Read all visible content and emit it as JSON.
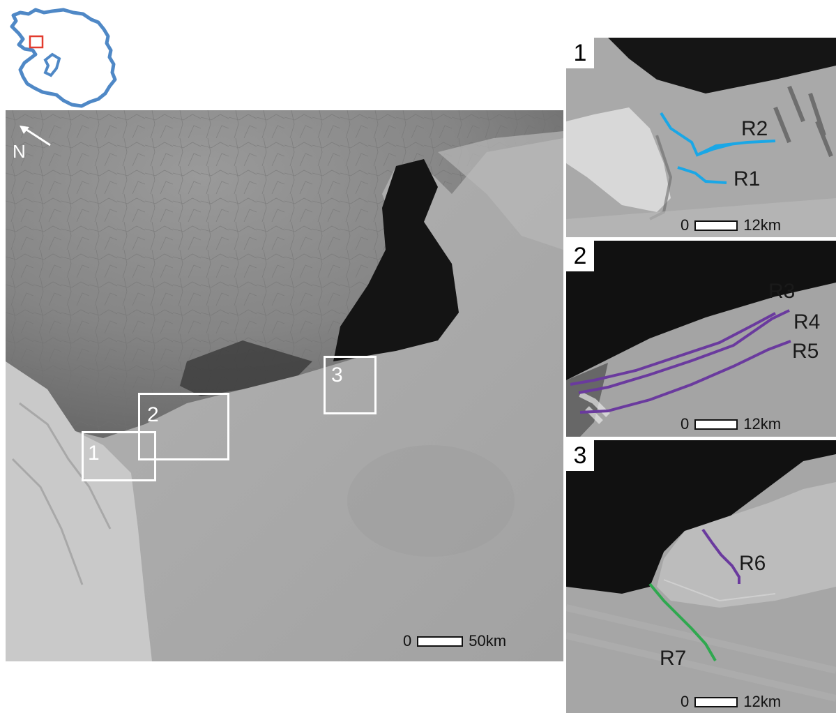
{
  "colors": {
    "continent_outline": "#4f88c6",
    "locator_box": "#e23b2e",
    "route_blue": "#1aa7e6",
    "route_purple": "#6a3a9e",
    "route_green": "#2fa84f",
    "box_outline": "#ffffff"
  },
  "inset_map": {
    "icon": "antarctica-outline-icon"
  },
  "main_map": {
    "north_label": "N",
    "north_icon": "north-arrow-icon",
    "boxes": [
      {
        "label": "1"
      },
      {
        "label": "2"
      },
      {
        "label": "3"
      }
    ],
    "scale": {
      "start": "0",
      "end": "50km"
    }
  },
  "panels": [
    {
      "number": "1",
      "routes": [
        {
          "label": "R2",
          "color": "#1aa7e6"
        },
        {
          "label": "R1",
          "color": "#1aa7e6"
        }
      ],
      "scale": {
        "start": "0",
        "end": "12km"
      }
    },
    {
      "number": "2",
      "routes": [
        {
          "label": "R3",
          "color": "#6a3a9e"
        },
        {
          "label": "R4",
          "color": "#6a3a9e"
        },
        {
          "label": "R5",
          "color": "#6a3a9e"
        }
      ],
      "scale": {
        "start": "0",
        "end": "12km"
      }
    },
    {
      "number": "3",
      "routes": [
        {
          "label": "R6",
          "color": "#6a3a9e"
        },
        {
          "label": "R7",
          "color": "#2fa84f"
        }
      ],
      "scale": {
        "start": "0",
        "end": "12km"
      }
    }
  ]
}
